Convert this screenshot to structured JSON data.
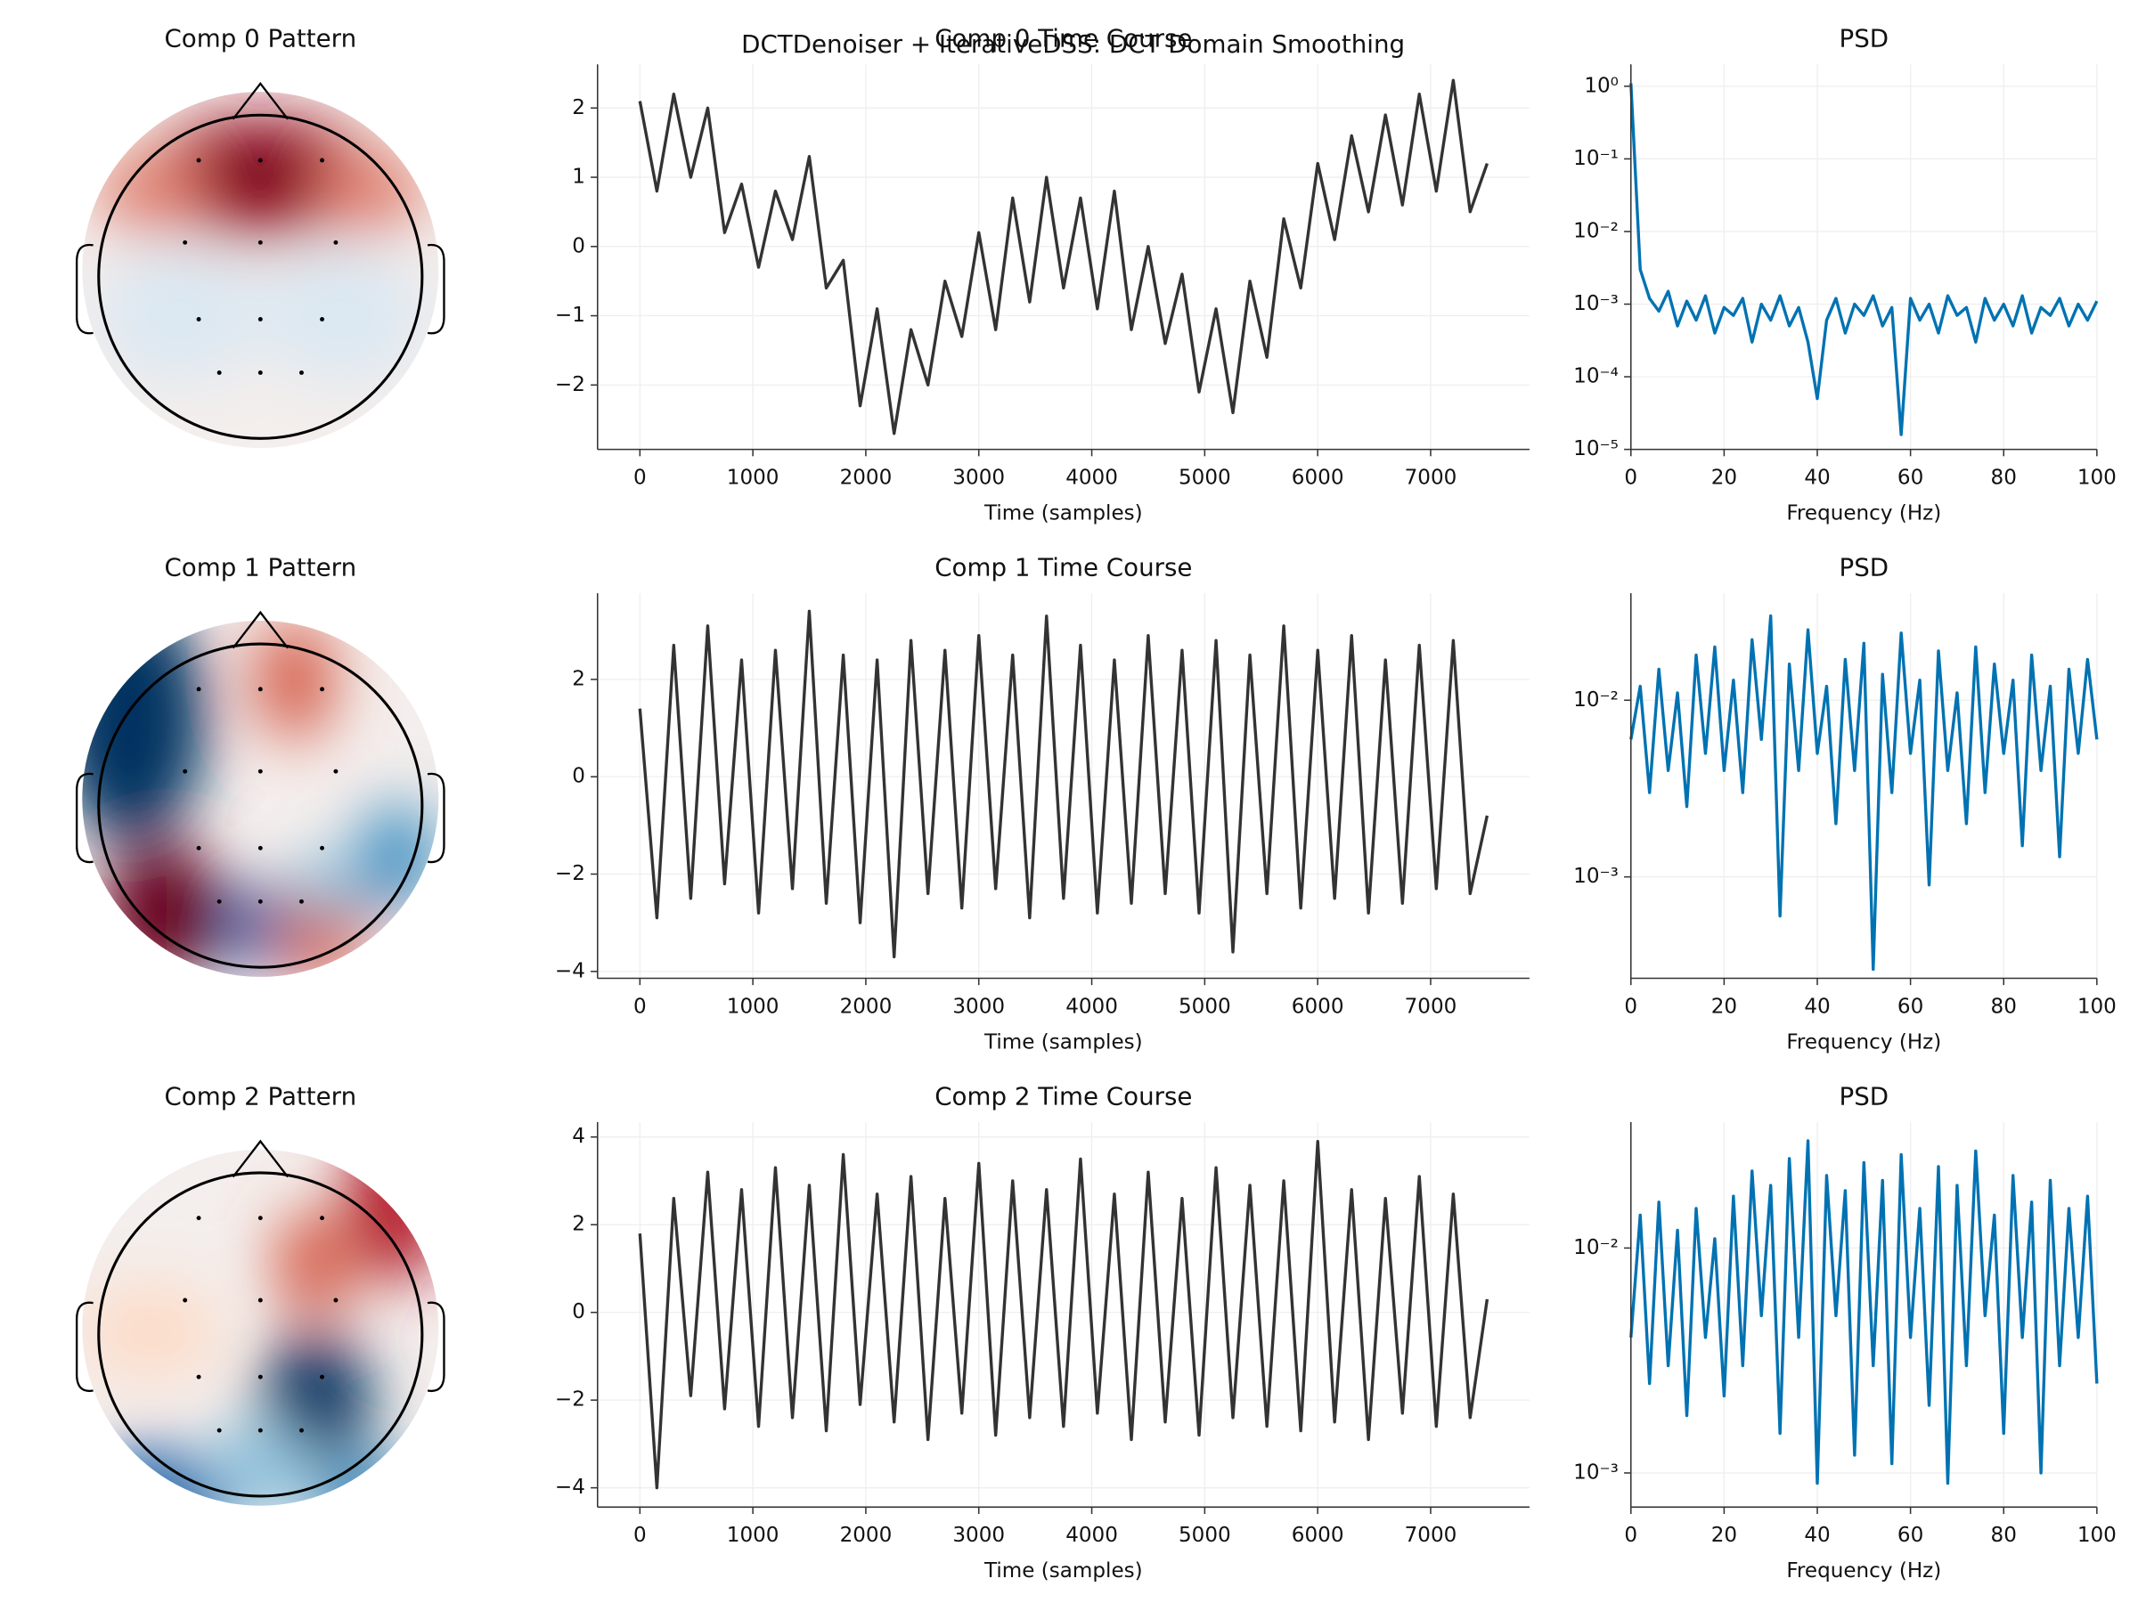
{
  "suptitle": "DCTDenoiser + IterativeDSS: DCT Domain Smoothing",
  "chart_data": [
    {
      "type": "topomap",
      "title": "Comp 0 Pattern"
    },
    {
      "type": "line",
      "title": "Comp 0 Time Course",
      "xlabel": "Time (samples)",
      "grid": true,
      "xlim": [
        -375,
        7875
      ],
      "ylim": [
        -2.93,
        2.63
      ],
      "xticks": [
        0,
        1000,
        2000,
        3000,
        4000,
        5000,
        6000,
        7000
      ],
      "yticks": [
        {
          "value": -2,
          "label": "−2"
        },
        {
          "value": -1,
          "label": "−1"
        },
        0,
        1,
        2
      ],
      "x": [
        0,
        150,
        300,
        450,
        600,
        750,
        900,
        1050,
        1200,
        1350,
        1500,
        1650,
        1800,
        1950,
        2100,
        2250,
        2400,
        2550,
        2700,
        2850,
        3000,
        3150,
        3300,
        3450,
        3600,
        3750,
        3900,
        4050,
        4200,
        4350,
        4500,
        4650,
        4800,
        4950,
        5100,
        5250,
        5400,
        5550,
        5700,
        5850,
        6000,
        6150,
        6300,
        6450,
        6600,
        6750,
        6900,
        7050,
        7200,
        7350,
        7500
      ],
      "series": [
        {
          "color": "#333333",
          "values": [
            2.1,
            0.8,
            2.2,
            1.0,
            2.0,
            0.2,
            0.9,
            -0.3,
            0.8,
            0.1,
            1.3,
            -0.6,
            -0.2,
            -2.3,
            -0.9,
            -2.7,
            -1.2,
            -2.0,
            -0.5,
            -1.3,
            0.2,
            -1.2,
            0.7,
            -0.8,
            1.0,
            -0.6,
            0.7,
            -0.9,
            0.8,
            -1.2,
            0.0,
            -1.4,
            -0.4,
            -2.1,
            -0.9,
            -2.4,
            -0.5,
            -1.6,
            0.4,
            -0.6,
            1.2,
            0.1,
            1.6,
            0.5,
            1.9,
            0.6,
            2.2,
            0.8,
            2.4,
            0.5,
            1.2
          ]
        }
      ]
    },
    {
      "type": "line",
      "title": "PSD",
      "xlabel": "Frequency (Hz)",
      "grid": true,
      "yscale": "log",
      "xlim": [
        0,
        100
      ],
      "ylim": [
        1e-05,
        2
      ],
      "xticks": [
        0,
        20,
        40,
        60,
        80,
        100
      ],
      "yticks": [
        {
          "value": 1e-05,
          "label": "10⁻⁵"
        },
        {
          "value": 0.0001,
          "label": "10⁻⁴"
        },
        {
          "value": 0.001,
          "label": "10⁻³"
        },
        {
          "value": 0.01,
          "label": "10⁻²"
        },
        {
          "value": 0.1,
          "label": "10⁻¹"
        },
        {
          "value": 1,
          "label": "10⁰"
        }
      ],
      "x": [
        0,
        2,
        4,
        6,
        8,
        10,
        12,
        14,
        16,
        18,
        20,
        22,
        24,
        26,
        28,
        30,
        32,
        34,
        36,
        38,
        40,
        42,
        44,
        46,
        48,
        50,
        52,
        54,
        56,
        58,
        60,
        62,
        64,
        66,
        68,
        70,
        72,
        74,
        76,
        78,
        80,
        82,
        84,
        86,
        88,
        90,
        92,
        94,
        96,
        98,
        100
      ],
      "series": [
        {
          "color": "#0072b2",
          "values": [
            1.1,
            0.003,
            0.0012,
            0.0008,
            0.0015,
            0.0005,
            0.0011,
            0.0006,
            0.0013,
            0.0004,
            0.0009,
            0.0007,
            0.0012,
            0.0003,
            0.001,
            0.0006,
            0.0013,
            0.0005,
            0.0009,
            0.0003,
            5e-05,
            0.0006,
            0.0012,
            0.0004,
            0.001,
            0.0007,
            0.0013,
            0.0005,
            0.0009,
            1.6e-05,
            0.0012,
            0.0006,
            0.001,
            0.0004,
            0.0013,
            0.0007,
            0.0009,
            0.0003,
            0.0012,
            0.0006,
            0.001,
            0.0005,
            0.0013,
            0.0004,
            0.0009,
            0.0007,
            0.0012,
            0.0005,
            0.001,
            0.0006,
            0.0011
          ]
        }
      ]
    },
    {
      "type": "topomap",
      "title": "Comp 1 Pattern"
    },
    {
      "type": "line",
      "title": "Comp 1 Time Course",
      "xlabel": "Time (samples)",
      "grid": true,
      "xlim": [
        -375,
        7875
      ],
      "ylim": [
        -4.14,
        3.77
      ],
      "xticks": [
        0,
        1000,
        2000,
        3000,
        4000,
        5000,
        6000,
        7000
      ],
      "yticks": [
        {
          "value": -4,
          "label": "−4"
        },
        {
          "value": -2,
          "label": "−2"
        },
        0,
        2
      ],
      "x": [
        0,
        150,
        300,
        450,
        600,
        750,
        900,
        1050,
        1200,
        1350,
        1500,
        1650,
        1800,
        1950,
        2100,
        2250,
        2400,
        2550,
        2700,
        2850,
        3000,
        3150,
        3300,
        3450,
        3600,
        3750,
        3900,
        4050,
        4200,
        4350,
        4500,
        4650,
        4800,
        4950,
        5100,
        5250,
        5400,
        5550,
        5700,
        5850,
        6000,
        6150,
        6300,
        6450,
        6600,
        6750,
        6900,
        7050,
        7200,
        7350,
        7500
      ],
      "series": [
        {
          "color": "#333333",
          "values": [
            1.4,
            -2.9,
            2.7,
            -2.5,
            3.1,
            -2.2,
            2.4,
            -2.8,
            2.6,
            -2.3,
            3.4,
            -2.6,
            2.5,
            -3.0,
            2.4,
            -3.7,
            2.8,
            -2.4,
            2.6,
            -2.7,
            2.9,
            -2.3,
            2.5,
            -2.9,
            3.3,
            -2.5,
            2.7,
            -2.8,
            2.4,
            -2.6,
            2.9,
            -2.4,
            2.6,
            -2.8,
            2.8,
            -3.6,
            2.5,
            -2.4,
            3.1,
            -2.7,
            2.6,
            -2.5,
            2.9,
            -2.8,
            2.4,
            -2.6,
            2.7,
            -2.3,
            2.8,
            -2.4,
            -0.8
          ]
        }
      ]
    },
    {
      "type": "line",
      "title": "PSD",
      "xlabel": "Frequency (Hz)",
      "grid": true,
      "yscale": "log",
      "xlim": [
        0,
        100
      ],
      "ylim": [
        0.000267,
        0.0403
      ],
      "xticks": [
        0,
        20,
        40,
        60,
        80,
        100
      ],
      "yticks": [
        {
          "value": 0.001,
          "label": "10⁻³"
        },
        {
          "value": 0.01,
          "label": "10⁻²"
        }
      ],
      "x": [
        0,
        2,
        4,
        6,
        8,
        10,
        12,
        14,
        16,
        18,
        20,
        22,
        24,
        26,
        28,
        30,
        32,
        34,
        36,
        38,
        40,
        42,
        44,
        46,
        48,
        50,
        52,
        54,
        56,
        58,
        60,
        62,
        64,
        66,
        68,
        70,
        72,
        74,
        76,
        78,
        80,
        82,
        84,
        86,
        88,
        90,
        92,
        94,
        96,
        98,
        100
      ],
      "series": [
        {
          "color": "#0072b2",
          "values": [
            0.006,
            0.012,
            0.003,
            0.015,
            0.004,
            0.011,
            0.0025,
            0.018,
            0.005,
            0.02,
            0.004,
            0.013,
            0.003,
            0.022,
            0.006,
            0.03,
            0.0006,
            0.016,
            0.004,
            0.025,
            0.005,
            0.012,
            0.002,
            0.017,
            0.004,
            0.021,
            0.0003,
            0.014,
            0.003,
            0.024,
            0.005,
            0.013,
            0.0009,
            0.019,
            0.004,
            0.011,
            0.002,
            0.02,
            0.003,
            0.016,
            0.005,
            0.013,
            0.0015,
            0.018,
            0.004,
            0.012,
            0.0013,
            0.015,
            0.005,
            0.017,
            0.006
          ]
        }
      ]
    },
    {
      "type": "topomap",
      "title": "Comp 2 Pattern"
    },
    {
      "type": "line",
      "title": "Comp 2 Time Course",
      "xlabel": "Time (samples)",
      "grid": true,
      "xlim": [
        -375,
        7875
      ],
      "ylim": [
        -4.44,
        4.34
      ],
      "xticks": [
        0,
        1000,
        2000,
        3000,
        4000,
        5000,
        6000,
        7000
      ],
      "yticks": [
        {
          "value": -4,
          "label": "−4"
        },
        {
          "value": -2,
          "label": "−2"
        },
        0,
        2,
        4
      ],
      "x": [
        0,
        150,
        300,
        450,
        600,
        750,
        900,
        1050,
        1200,
        1350,
        1500,
        1650,
        1800,
        1950,
        2100,
        2250,
        2400,
        2550,
        2700,
        2850,
        3000,
        3150,
        3300,
        3450,
        3600,
        3750,
        3900,
        4050,
        4200,
        4350,
        4500,
        4650,
        4800,
        4950,
        5100,
        5250,
        5400,
        5550,
        5700,
        5850,
        6000,
        6150,
        6300,
        6450,
        6600,
        6750,
        6900,
        7050,
        7200,
        7350,
        7500
      ],
      "series": [
        {
          "color": "#333333",
          "values": [
            1.8,
            -4.0,
            2.6,
            -1.9,
            3.2,
            -2.2,
            2.8,
            -2.6,
            3.3,
            -2.4,
            2.9,
            -2.7,
            3.6,
            -2.1,
            2.7,
            -2.5,
            3.1,
            -2.9,
            2.6,
            -2.3,
            3.4,
            -2.8,
            3.0,
            -2.4,
            2.8,
            -2.6,
            3.5,
            -2.3,
            2.7,
            -2.9,
            3.2,
            -2.5,
            2.6,
            -2.8,
            3.3,
            -2.4,
            2.9,
            -2.6,
            3.0,
            -2.7,
            3.9,
            -2.5,
            2.8,
            -2.9,
            2.6,
            -2.3,
            3.1,
            -2.6,
            2.7,
            -2.4,
            0.3
          ]
        }
      ]
    },
    {
      "type": "line",
      "title": "PSD",
      "xlabel": "Frequency (Hz)",
      "grid": true,
      "yscale": "log",
      "xlim": [
        0,
        100
      ],
      "ylim": [
        0.000705,
        0.0363
      ],
      "xticks": [
        0,
        20,
        40,
        60,
        80,
        100
      ],
      "yticks": [
        {
          "value": 0.001,
          "label": "10⁻³"
        },
        {
          "value": 0.01,
          "label": "10⁻²"
        }
      ],
      "x": [
        0,
        2,
        4,
        6,
        8,
        10,
        12,
        14,
        16,
        18,
        20,
        22,
        24,
        26,
        28,
        30,
        32,
        34,
        36,
        38,
        40,
        42,
        44,
        46,
        48,
        50,
        52,
        54,
        56,
        58,
        60,
        62,
        64,
        66,
        68,
        70,
        72,
        74,
        76,
        78,
        80,
        82,
        84,
        86,
        88,
        90,
        92,
        94,
        96,
        98,
        100
      ],
      "series": [
        {
          "color": "#0072b2",
          "values": [
            0.004,
            0.014,
            0.0025,
            0.016,
            0.003,
            0.012,
            0.0018,
            0.015,
            0.004,
            0.011,
            0.0022,
            0.017,
            0.003,
            0.022,
            0.005,
            0.019,
            0.0015,
            0.025,
            0.004,
            0.03,
            0.0009,
            0.021,
            0.005,
            0.018,
            0.0012,
            0.024,
            0.003,
            0.02,
            0.0011,
            0.026,
            0.004,
            0.015,
            0.002,
            0.023,
            0.0009,
            0.019,
            0.003,
            0.027,
            0.005,
            0.014,
            0.0015,
            0.021,
            0.004,
            0.016,
            0.001,
            0.02,
            0.003,
            0.015,
            0.004,
            0.017,
            0.0025
          ]
        }
      ]
    }
  ]
}
